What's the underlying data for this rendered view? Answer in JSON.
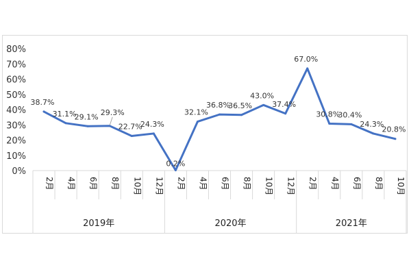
{
  "chart_data": {
    "type": "line",
    "title": "",
    "xlabel": "",
    "ylabel": "",
    "ylim": [
      0,
      80
    ],
    "y_ticks": [
      "0%",
      "10%",
      "20%",
      "30%",
      "40%",
      "50%",
      "60%",
      "70%",
      "80%"
    ],
    "grid": false,
    "legend": "none",
    "line_color": "#4472c4",
    "groups": [
      {
        "label": "2019年",
        "categories": [
          "2月",
          "4月",
          "6月",
          "8月",
          "10月",
          "12月"
        ]
      },
      {
        "label": "2020年",
        "categories": [
          "2月",
          "4月",
          "6月",
          "8月",
          "10月",
          "12月"
        ]
      },
      {
        "label": "2021年",
        "categories": [
          "2月",
          "4月",
          "6月",
          "8月",
          "10月"
        ]
      }
    ],
    "values": [
      38.7,
      31.1,
      29.1,
      29.3,
      22.7,
      24.3,
      0.2,
      32.1,
      36.8,
      36.5,
      43.0,
      37.4,
      67.0,
      30.8,
      30.4,
      24.3,
      20.8
    ],
    "value_labels": [
      "38.7%",
      "31.1%",
      "29.1%",
      "29.3%",
      "22.7%",
      "24.3%",
      "0.2%",
      "32.1%",
      "36.8%",
      "36.5%",
      "43.0%",
      "37.4%",
      "67.0%",
      "30.8%",
      "30.4%",
      "24.3%",
      "20.8%"
    ]
  }
}
